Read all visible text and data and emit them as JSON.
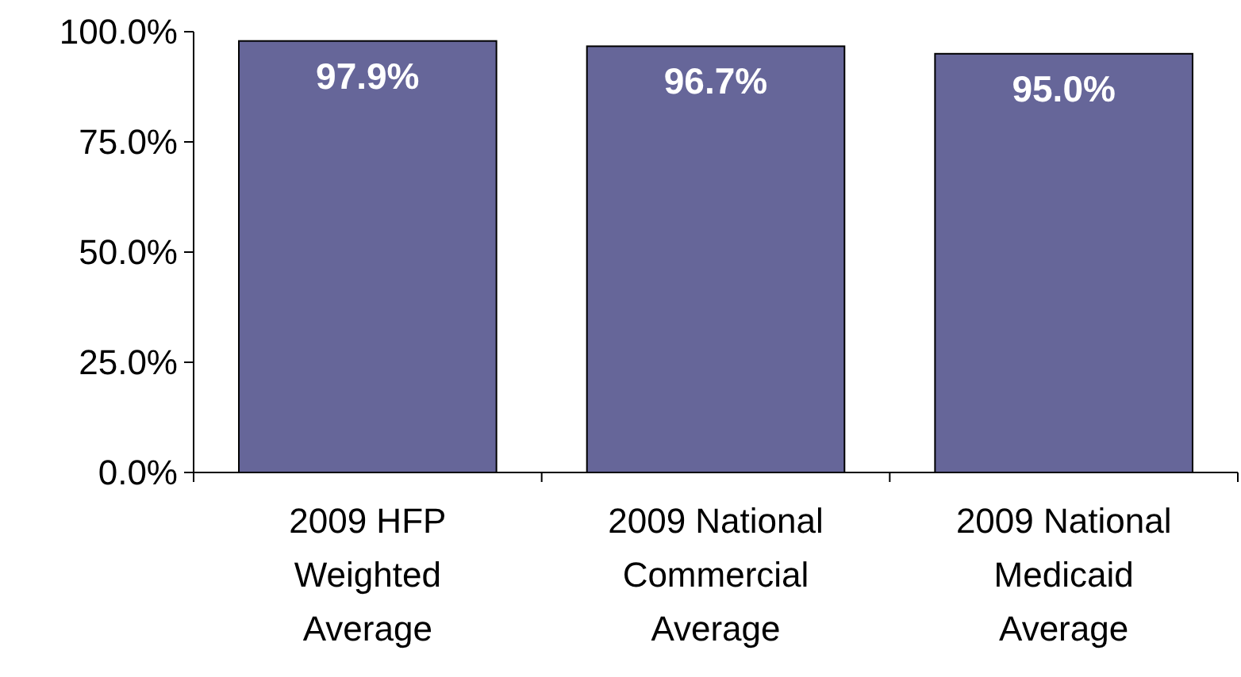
{
  "chart_data": {
    "type": "bar",
    "categories": [
      "2009 HFP\nWeighted\nAverage",
      "2009 National\nCommercial\nAverage",
      "2009 National\nMedicaid\nAverage"
    ],
    "values": [
      97.9,
      96.7,
      95.0
    ],
    "value_labels": [
      "97.9%",
      "96.7%",
      "95.0%"
    ],
    "color": "#666699",
    "ylim": [
      0,
      100
    ],
    "yticks": [
      {
        "value": 0,
        "label": "0.0%"
      },
      {
        "value": 25,
        "label": "25.0%"
      },
      {
        "value": 50,
        "label": "50.0%"
      },
      {
        "value": 75,
        "label": "75.0%"
      },
      {
        "value": 100,
        "label": "100.0%"
      }
    ],
    "grid": false
  }
}
